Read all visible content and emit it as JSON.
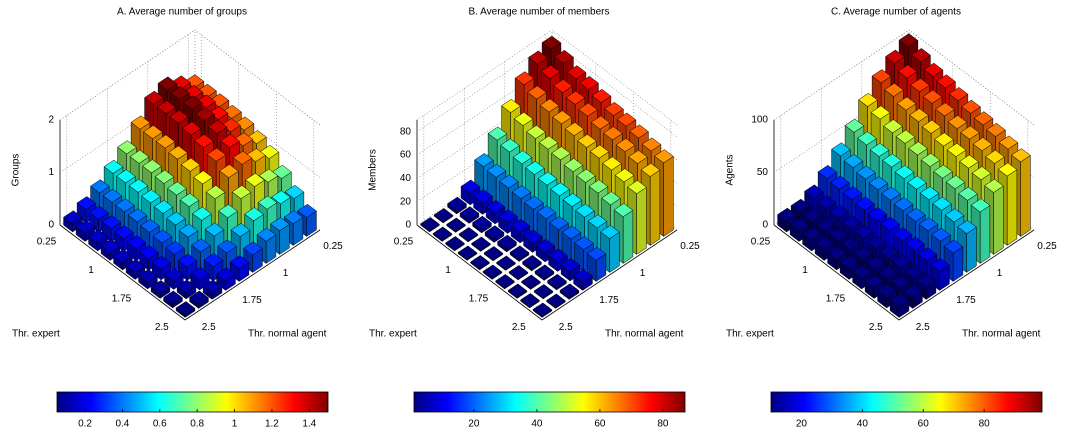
{
  "chart_data": [
    {
      "type": "bar3d",
      "title": "A. Average number of groups",
      "zlabel": "Groups",
      "xlabel": "Thr. expert",
      "ylabel": "Thr. normal agent",
      "x": [
        0.25,
        0.5,
        0.75,
        1,
        1.25,
        1.5,
        1.75,
        2,
        2.25,
        2.5
      ],
      "y": [
        0.25,
        0.5,
        0.75,
        1,
        1.25,
        1.5,
        1.75,
        2,
        2.25,
        2.5
      ],
      "xlim": [
        0.25,
        2.5
      ],
      "ylim": [
        0.25,
        2.5
      ],
      "xticks": [
        0.25,
        1,
        1.75,
        2.5
      ],
      "yticks": [
        0.25,
        1,
        1.75,
        2.5
      ],
      "zlim": [
        0,
        2
      ],
      "zticks": [
        0,
        1,
        2
      ],
      "grid": true,
      "colormap": "jet",
      "clim": [
        0.05,
        1.5
      ],
      "cticks": [
        0.2,
        0.4,
        0.6,
        0.8,
        1,
        1.2,
        1.4
      ],
      "z": [
        [
          1.2,
          1.35,
          1.5,
          1.4,
          1.1,
          0.8,
          0.6,
          0.4,
          0.25,
          0.15
        ],
        [
          1.2,
          1.35,
          1.5,
          1.4,
          1.1,
          0.8,
          0.6,
          0.4,
          0.25,
          0.15
        ],
        [
          1.2,
          1.35,
          1.5,
          1.4,
          1.1,
          0.8,
          0.6,
          0.4,
          0.25,
          0.15
        ],
        [
          1.16,
          1.31,
          1.46,
          1.36,
          1.07,
          0.78,
          0.58,
          0.39,
          0.24,
          0.15
        ],
        [
          1.12,
          1.26,
          1.4,
          1.3,
          1.02,
          0.74,
          0.56,
          0.37,
          0.23,
          0.14
        ],
        [
          1.04,
          1.17,
          1.31,
          1.22,
          0.96,
          0.7,
          0.52,
          0.35,
          0.22,
          0.13
        ],
        [
          0.94,
          1.05,
          1.17,
          1.09,
          0.86,
          0.62,
          0.47,
          0.31,
          0.2,
          0.12
        ],
        [
          0.74,
          0.84,
          0.93,
          0.87,
          0.68,
          0.5,
          0.37,
          0.25,
          0.16,
          0.09
        ],
        [
          0.54,
          0.61,
          0.68,
          0.63,
          0.5,
          0.36,
          0.27,
          0.18,
          0.11,
          0.07
        ],
        [
          0.36,
          0.41,
          0.45,
          0.42,
          0.33,
          0.24,
          0.18,
          0.12,
          0.08,
          0.05
        ]
      ]
    },
    {
      "type": "bar3d",
      "title": "B. Average number of members",
      "zlabel": "Members",
      "xlabel": "Thr. expert",
      "ylabel": "Thr. normal agent",
      "x": [
        0.25,
        0.5,
        0.75,
        1,
        1.25,
        1.5,
        1.75,
        2,
        2.25,
        2.5
      ],
      "y": [
        0.25,
        0.5,
        0.75,
        1,
        1.25,
        1.5,
        1.75,
        2,
        2.25,
        2.5
      ],
      "xlim": [
        0.25,
        2.5
      ],
      "ylim": [
        0.25,
        2.5
      ],
      "xticks": [
        0.25,
        1,
        1.75,
        2.5
      ],
      "yticks": [
        0.25,
        1,
        1.75,
        2.5
      ],
      "zlim": [
        0,
        90
      ],
      "zticks": [
        0,
        20,
        40,
        60,
        80
      ],
      "grid": true,
      "colormap": "jet",
      "clim": [
        1,
        87
      ],
      "cticks": [
        20,
        40,
        60,
        80
      ],
      "z": [
        [
          87,
          82,
          72,
          56,
          40,
          25,
          10,
          3,
          1,
          1
        ],
        [
          83,
          78,
          68,
          53,
          38,
          24,
          10,
          3,
          1,
          1
        ],
        [
          78,
          74,
          65,
          50,
          36,
          23,
          9,
          3,
          1,
          1
        ],
        [
          77,
          72,
          63,
          49,
          35,
          22,
          9,
          3,
          1,
          1
        ],
        [
          74,
          70,
          61,
          48,
          34,
          21,
          9,
          3,
          1,
          1
        ],
        [
          71,
          67,
          59,
          46,
          33,
          21,
          8,
          2,
          1,
          1
        ],
        [
          70,
          66,
          58,
          45,
          32,
          20,
          8,
          2,
          1,
          1
        ],
        [
          68,
          64,
          56,
          44,
          31,
          20,
          8,
          2,
          1,
          1
        ],
        [
          65,
          62,
          54,
          42,
          30,
          19,
          8,
          2,
          1,
          1
        ],
        [
          63,
          59,
          52,
          40,
          29,
          18,
          7,
          2,
          1,
          1
        ]
      ]
    },
    {
      "type": "bar3d",
      "title": "C. Average number of agents",
      "zlabel": "Agents",
      "xlabel": "Thr. expert",
      "ylabel": "Thr. normal agent",
      "x": [
        0.25,
        0.5,
        0.75,
        1,
        1.25,
        1.5,
        1.75,
        2,
        2.25,
        2.5
      ],
      "y": [
        0.25,
        0.5,
        0.75,
        1,
        1.25,
        1.5,
        1.75,
        2,
        2.25,
        2.5
      ],
      "xlim": [
        0.25,
        2.5
      ],
      "ylim": [
        0.25,
        2.5
      ],
      "xticks": [
        0.25,
        1,
        1.75,
        2.5
      ],
      "yticks": [
        0.25,
        1,
        1.75,
        2.5
      ],
      "zlim": [
        0,
        100
      ],
      "zticks": [
        0,
        50,
        100
      ],
      "grid": true,
      "colormap": "jet",
      "clim": [
        10,
        99
      ],
      "cticks": [
        20,
        40,
        60,
        80
      ],
      "z": [
        [
          99,
          92,
          82,
          68,
          52,
          38,
          25,
          15,
          10,
          10
        ],
        [
          94,
          87,
          78,
          65,
          49,
          36,
          24,
          14,
          10,
          10
        ],
        [
          89,
          83,
          74,
          61,
          47,
          34,
          23,
          14,
          10,
          10
        ],
        [
          87,
          81,
          72,
          60,
          46,
          33,
          22,
          13,
          10,
          10
        ],
        [
          84,
          78,
          70,
          58,
          44,
          32,
          21,
          13,
          10,
          10
        ],
        [
          81,
          75,
          67,
          56,
          43,
          31,
          21,
          12,
          10,
          10
        ],
        [
          79,
          74,
          66,
          54,
          42,
          30,
          20,
          12,
          10,
          10
        ],
        [
          77,
          72,
          64,
          53,
          41,
          30,
          20,
          12,
          10,
          10
        ],
        [
          74,
          69,
          62,
          51,
          39,
          29,
          19,
          11,
          10,
          10
        ],
        [
          71,
          66,
          59,
          49,
          37,
          27,
          18,
          11,
          10,
          10
        ]
      ]
    }
  ]
}
